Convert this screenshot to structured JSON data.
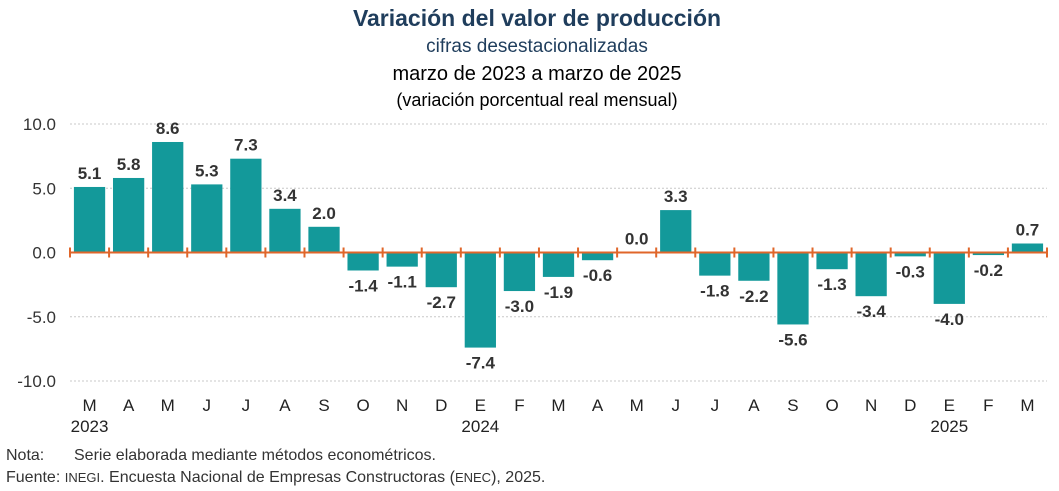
{
  "chart_data": {
    "type": "bar",
    "title": "Variación del valor de producción",
    "subtitle": "cifras desestacionalizadas",
    "period": "marzo de 2023 a marzo de 2025",
    "units": "(variación porcentual real mensual)",
    "categories": [
      "M",
      "A",
      "M",
      "J",
      "J",
      "A",
      "S",
      "O",
      "N",
      "D",
      "E",
      "F",
      "M",
      "A",
      "M",
      "J",
      "J",
      "A",
      "S",
      "O",
      "N",
      "D",
      "E",
      "F",
      "M"
    ],
    "values": [
      5.1,
      5.8,
      8.6,
      5.3,
      7.3,
      3.4,
      2.0,
      -1.4,
      -1.1,
      -2.7,
      -7.4,
      -3.0,
      -1.9,
      -0.6,
      0.0,
      3.3,
      -1.8,
      -2.2,
      -5.6,
      -1.3,
      -3.4,
      -0.3,
      -4.0,
      -0.2,
      0.7
    ],
    "value_labels": [
      "5.1",
      "5.8",
      "8.6",
      "5.3",
      "7.3",
      "3.4",
      "2.0",
      "-1.4",
      "-1.1",
      "-2.7",
      "-7.4",
      "-3.0",
      "-1.9",
      "-0.6",
      "0.0",
      "3.3",
      "-1.8",
      "-2.2",
      "-5.6",
      "-1.3",
      "-3.4",
      "-0.3",
      "-4.0",
      "-0.2",
      "0.7"
    ],
    "year_labels": [
      {
        "index": 0,
        "text": "2023"
      },
      {
        "index": 10,
        "text": "2024"
      },
      {
        "index": 22,
        "text": "2025"
      }
    ],
    "yticks": [
      "10.0",
      "5.0",
      "0.0",
      "-5.0",
      "-10.0"
    ],
    "ytick_values": [
      10,
      5,
      0,
      -5,
      -10
    ],
    "ylim": [
      -10,
      10
    ],
    "grid": true,
    "bar_color": "#13999a",
    "baseline_color": "#e0662a",
    "title_color": "#1f3d5c"
  },
  "footer": {
    "note_label": "Nota:",
    "note_text": "Serie elaborada mediante métodos econométricos.",
    "source_label": "Fuente:",
    "source_text": "INEGI. Encuesta Nacional de Empresas Constructoras (ENEC), 2025."
  }
}
